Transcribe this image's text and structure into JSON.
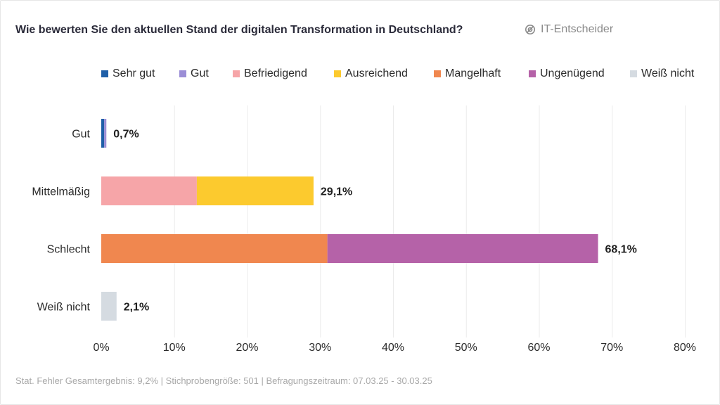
{
  "header": {
    "title": "Wie bewerten Sie den aktuellen Stand der digitalen Transformation in Deutschland?",
    "badge_label": "IT-Entscheider",
    "badge_icon": "target-group-icon"
  },
  "footer": {
    "note": "Stat. Fehler Gesamtergebnis: 9,2% | Stichprobengröße: 501 | Befragungszeitraum: 07.03.25 - 30.03.25"
  },
  "chart_data": {
    "type": "bar",
    "orientation": "horizontal",
    "stacked": true,
    "title": "Wie bewerten Sie den aktuellen Stand der digitalen Transformation in Deutschland?",
    "xlabel": "",
    "ylabel": "",
    "xlim": [
      0,
      80
    ],
    "x_ticks": [
      0,
      10,
      20,
      30,
      40,
      50,
      60,
      70,
      80
    ],
    "x_tick_labels": [
      "0%",
      "10%",
      "20%",
      "30%",
      "40%",
      "50%",
      "60%",
      "70%",
      "80%"
    ],
    "grid": true,
    "legend_position": "top",
    "categories": [
      "Gut",
      "Mittelmäßig",
      "Schlecht",
      "Weiß nicht"
    ],
    "series": [
      {
        "name": "Sehr gut",
        "color": "#1f5fa8",
        "values": [
          0.4,
          0,
          0,
          0
        ]
      },
      {
        "name": "Gut",
        "color": "#9b8ed6",
        "values": [
          0.3,
          0,
          0,
          0
        ]
      },
      {
        "name": "Befriedigend",
        "color": "#f6a5a8",
        "values": [
          0,
          13.1,
          0,
          0
        ]
      },
      {
        "name": "Ausreichend",
        "color": "#fcca2e",
        "values": [
          0,
          16.0,
          0,
          0
        ]
      },
      {
        "name": "Mangelhaft",
        "color": "#f0874f",
        "values": [
          0,
          0,
          31.0,
          0
        ]
      },
      {
        "name": "Ungenügend",
        "color": "#b562a8",
        "values": [
          0,
          0,
          37.1,
          0
        ]
      },
      {
        "name": "Weiß nicht",
        "color": "#d5dbe1",
        "values": [
          0,
          0,
          0,
          2.1
        ]
      }
    ],
    "totals": [
      0.7,
      29.1,
      68.1,
      2.1
    ],
    "total_labels": [
      "0,7%",
      "29,1%",
      "68,1%",
      "2,1%"
    ]
  }
}
